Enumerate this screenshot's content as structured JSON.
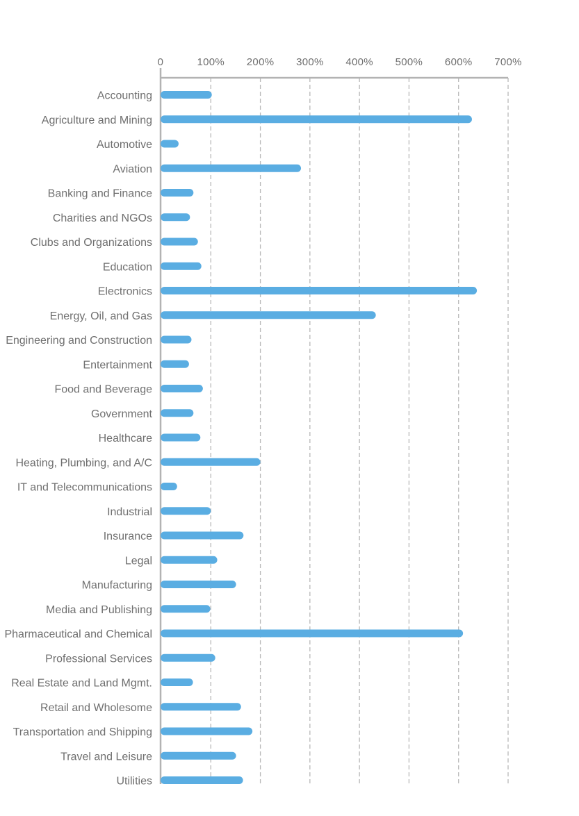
{
  "chart_data": {
    "type": "bar",
    "orientation": "horizontal",
    "title": "",
    "xlabel": "",
    "ylabel": "",
    "x_axis_position": "top",
    "x_ticks": [
      "0",
      "100%",
      "200%",
      "300%",
      "400%",
      "500%",
      "600%",
      "700%"
    ],
    "xlim": [
      0,
      700
    ],
    "grid": "vertical dashed",
    "bar_color": "#5aade2",
    "categories": [
      "Accounting",
      "Agriculture and Mining",
      "Automotive",
      "Aviation",
      "Banking and Finance",
      "Charities and NGOs",
      "Clubs and Organizations",
      "Education",
      "Electronics",
      "Energy, Oil, and Gas",
      "Engineering and Construction",
      "Entertainment",
      "Food and Beverage",
      "Government",
      "Healthcare",
      "Heating, Plumbing, and A/C",
      "IT and Telecommunications",
      "Industrial",
      "Insurance",
      "Legal",
      "Manufacturing",
      "Media and Publishing",
      "Pharmaceutical and Chemical",
      "Professional Services",
      "Real Estate and Land Mgmt.",
      "Retail and Wholesome",
      "Transportation and Shipping",
      "Travel and Leisure",
      "Utilities"
    ],
    "values": [
      102,
      627,
      35,
      282,
      65,
      58,
      74,
      81,
      637,
      433,
      61,
      56,
      84,
      65,
      79,
      200,
      32,
      100,
      166,
      113,
      151,
      99,
      609,
      109,
      64,
      161,
      184,
      151,
      165
    ]
  }
}
